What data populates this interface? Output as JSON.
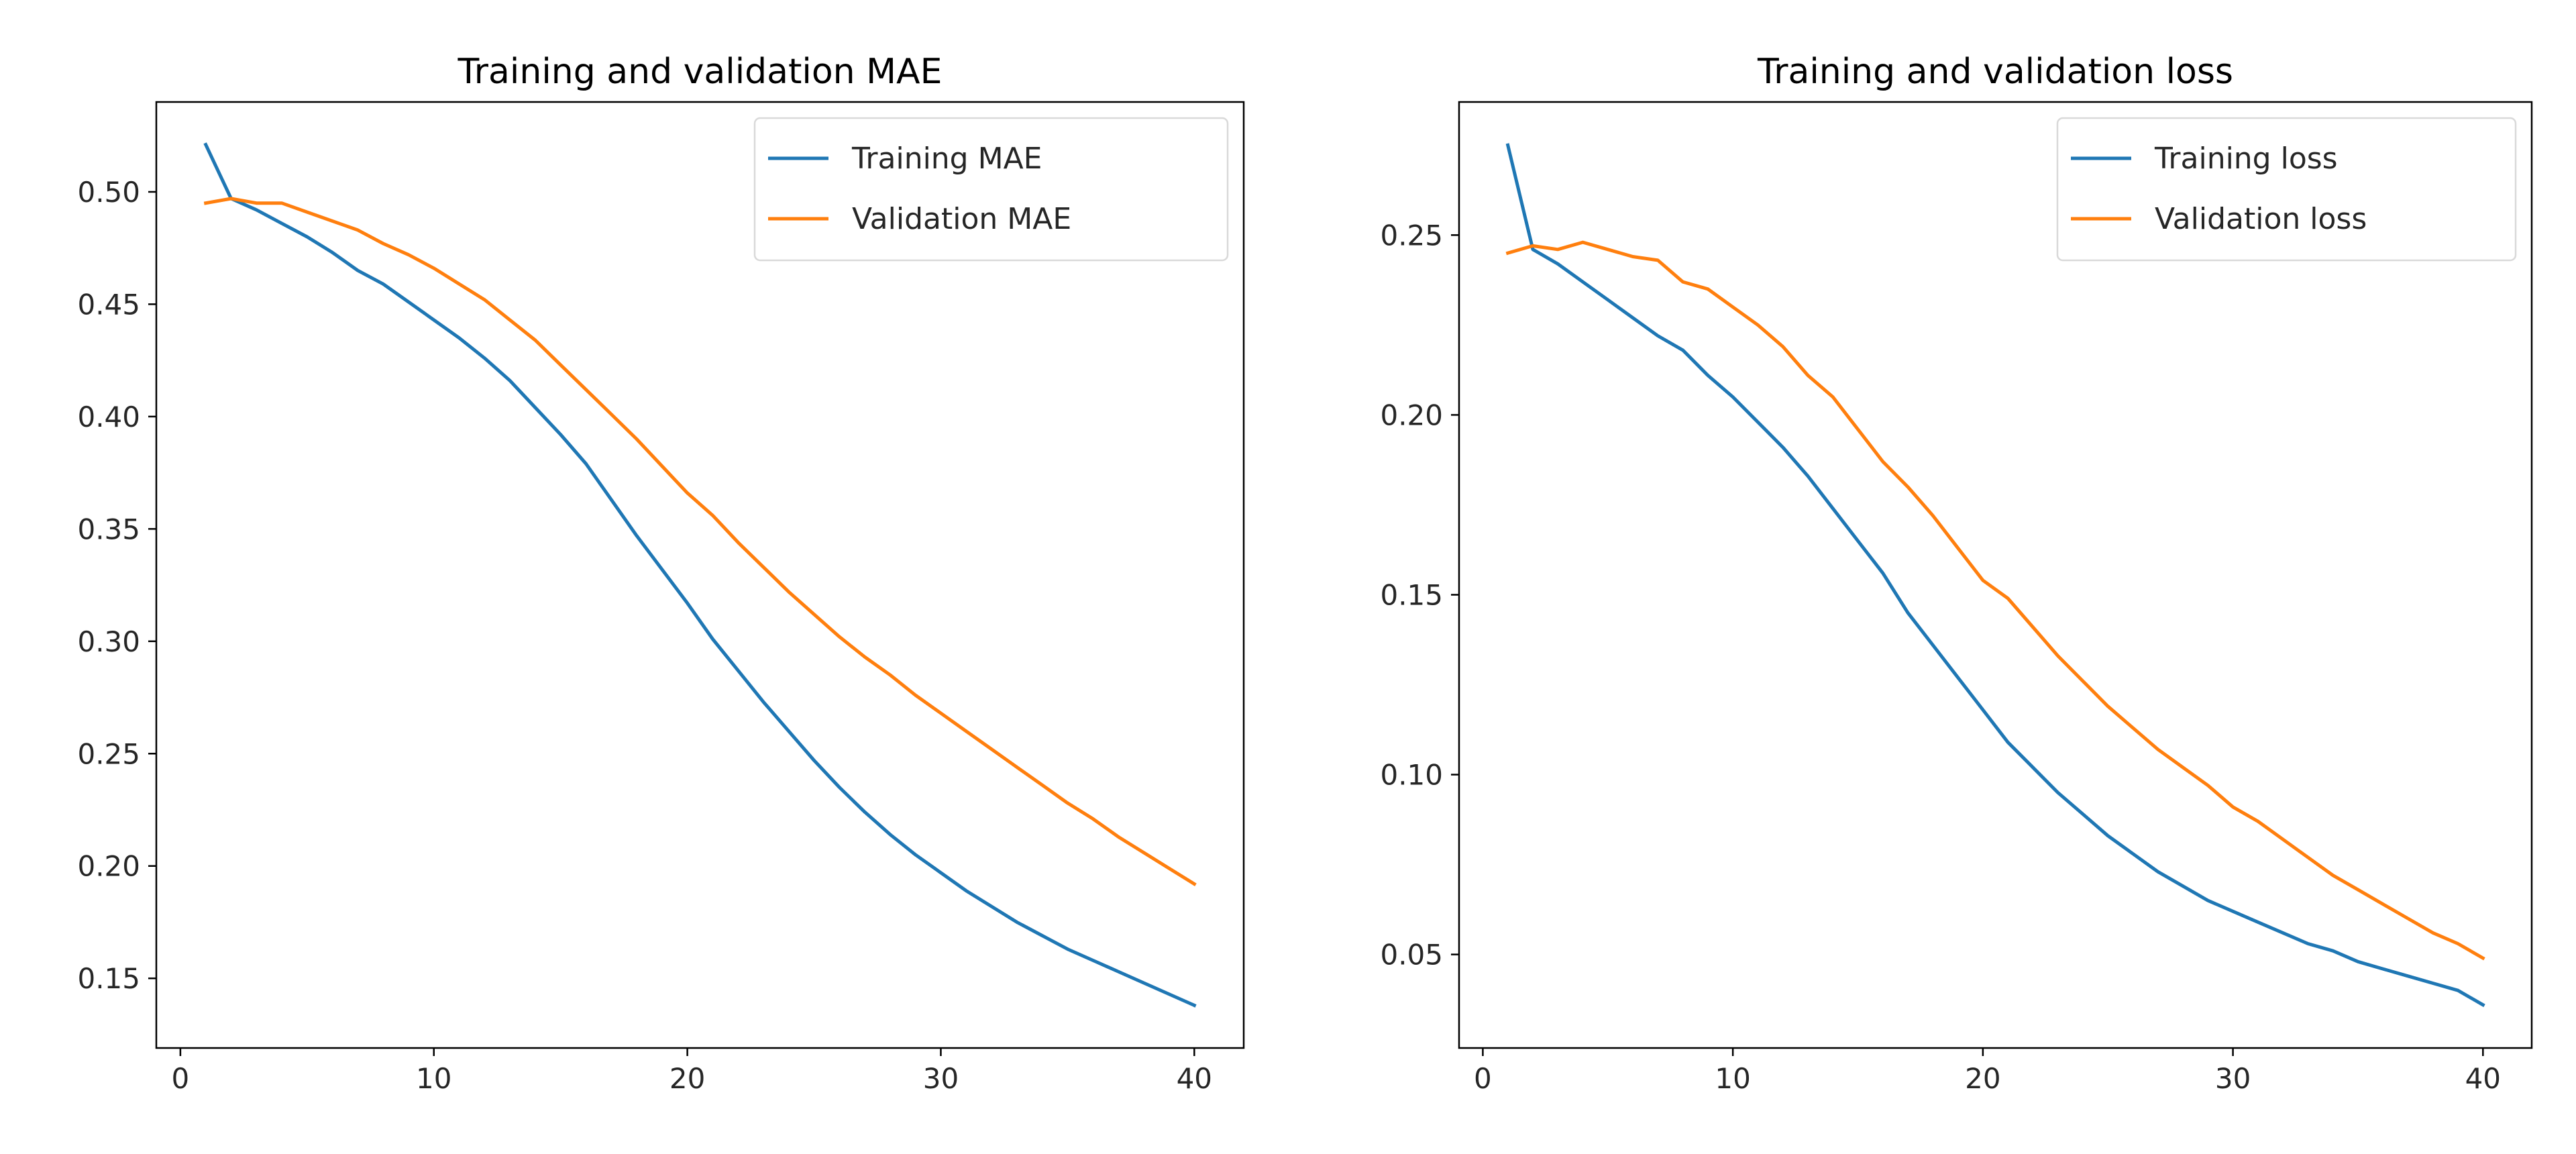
{
  "chart_data": [
    {
      "type": "line",
      "title": "Training and validation MAE",
      "xlabel": "",
      "ylabel": "",
      "xlim": [
        -0.95,
        41.95
      ],
      "ylim": [
        0.119,
        0.54
      ],
      "xticks": [
        0,
        10,
        20,
        30,
        40
      ],
      "yticks": [
        0.15,
        0.2,
        0.25,
        0.3,
        0.35,
        0.4,
        0.45,
        0.5
      ],
      "ytick_labels": [
        "0.15",
        "0.20",
        "0.25",
        "0.30",
        "0.35",
        "0.40",
        "0.45",
        "0.50"
      ],
      "grid": false,
      "legend": "upper-right",
      "x": [
        1,
        2,
        3,
        4,
        5,
        6,
        7,
        8,
        9,
        10,
        11,
        12,
        13,
        14,
        15,
        16,
        17,
        18,
        19,
        20,
        21,
        22,
        23,
        24,
        25,
        26,
        27,
        28,
        29,
        30,
        31,
        32,
        33,
        34,
        35,
        36,
        37,
        38,
        39,
        40
      ],
      "series": [
        {
          "name": "Training MAE",
          "color": "#1f77b4",
          "values": [
            0.521,
            0.497,
            0.492,
            0.486,
            0.48,
            0.473,
            0.465,
            0.459,
            0.451,
            0.443,
            0.435,
            0.426,
            0.416,
            0.404,
            0.392,
            0.379,
            0.363,
            0.347,
            0.332,
            0.317,
            0.301,
            0.287,
            0.273,
            0.26,
            0.247,
            0.235,
            0.224,
            0.214,
            0.205,
            0.197,
            0.189,
            0.182,
            0.175,
            0.169,
            0.163,
            0.158,
            0.153,
            0.148,
            0.143,
            0.138
          ]
        },
        {
          "name": "Validation MAE",
          "color": "#ff7f0e",
          "values": [
            0.495,
            0.497,
            0.495,
            0.495,
            0.491,
            0.487,
            0.483,
            0.477,
            0.472,
            0.466,
            0.459,
            0.452,
            0.443,
            0.434,
            0.423,
            0.412,
            0.401,
            0.39,
            0.378,
            0.366,
            0.356,
            0.344,
            0.333,
            0.322,
            0.312,
            0.302,
            0.293,
            0.285,
            0.276,
            0.268,
            0.26,
            0.252,
            0.244,
            0.236,
            0.228,
            0.221,
            0.213,
            0.206,
            0.199,
            0.192
          ]
        }
      ]
    },
    {
      "type": "line",
      "title": "Training and validation loss",
      "xlabel": "",
      "ylabel": "",
      "xlim": [
        -0.95,
        41.95
      ],
      "ylim": [
        0.024,
        0.287
      ],
      "xticks": [
        0,
        10,
        20,
        30,
        40
      ],
      "yticks": [
        0.05,
        0.1,
        0.15,
        0.2,
        0.25
      ],
      "ytick_labels": [
        "0.05",
        "0.10",
        "0.15",
        "0.20",
        "0.25"
      ],
      "grid": false,
      "legend": "upper-right",
      "x": [
        1,
        2,
        3,
        4,
        5,
        6,
        7,
        8,
        9,
        10,
        11,
        12,
        13,
        14,
        15,
        16,
        17,
        18,
        19,
        20,
        21,
        22,
        23,
        24,
        25,
        26,
        27,
        28,
        29,
        30,
        31,
        32,
        33,
        34,
        35,
        36,
        37,
        38,
        39,
        40
      ],
      "series": [
        {
          "name": "Training loss",
          "color": "#1f77b4",
          "values": [
            0.275,
            0.246,
            0.242,
            0.237,
            0.232,
            0.227,
            0.222,
            0.218,
            0.211,
            0.205,
            0.198,
            0.191,
            0.183,
            0.174,
            0.165,
            0.156,
            0.145,
            0.136,
            0.127,
            0.118,
            0.109,
            0.102,
            0.095,
            0.089,
            0.083,
            0.078,
            0.073,
            0.069,
            0.065,
            0.062,
            0.059,
            0.056,
            0.053,
            0.051,
            0.048,
            0.046,
            0.044,
            0.042,
            0.04,
            0.036
          ]
        },
        {
          "name": "Validation loss",
          "color": "#ff7f0e",
          "values": [
            0.245,
            0.247,
            0.246,
            0.248,
            0.246,
            0.244,
            0.243,
            0.237,
            0.235,
            0.23,
            0.225,
            0.219,
            0.211,
            0.205,
            0.196,
            0.187,
            0.18,
            0.172,
            0.163,
            0.154,
            0.149,
            0.141,
            0.133,
            0.126,
            0.119,
            0.113,
            0.107,
            0.102,
            0.097,
            0.091,
            0.087,
            0.082,
            0.077,
            0.072,
            0.068,
            0.064,
            0.06,
            0.056,
            0.053,
            0.049
          ]
        }
      ]
    }
  ]
}
